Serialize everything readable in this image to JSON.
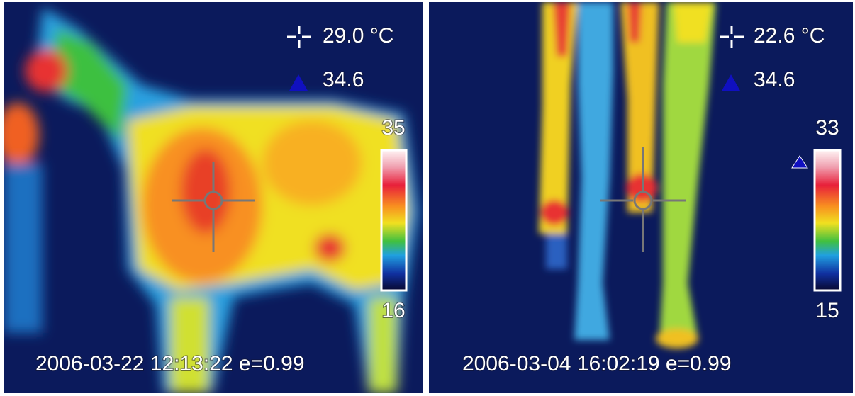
{
  "panels": [
    {
      "spot_temperature": "29.0 °C",
      "max_marker": "34.6",
      "scale_max": "35",
      "scale_min": "16",
      "timestamp": "2006-03-22 12:13:22 e=0.99"
    },
    {
      "spot_temperature": "22.6 °C",
      "max_marker": "34.6",
      "scale_max": "33",
      "scale_min": "15",
      "timestamp": "2006-03-04 16:02:19 e=0.99"
    }
  ]
}
